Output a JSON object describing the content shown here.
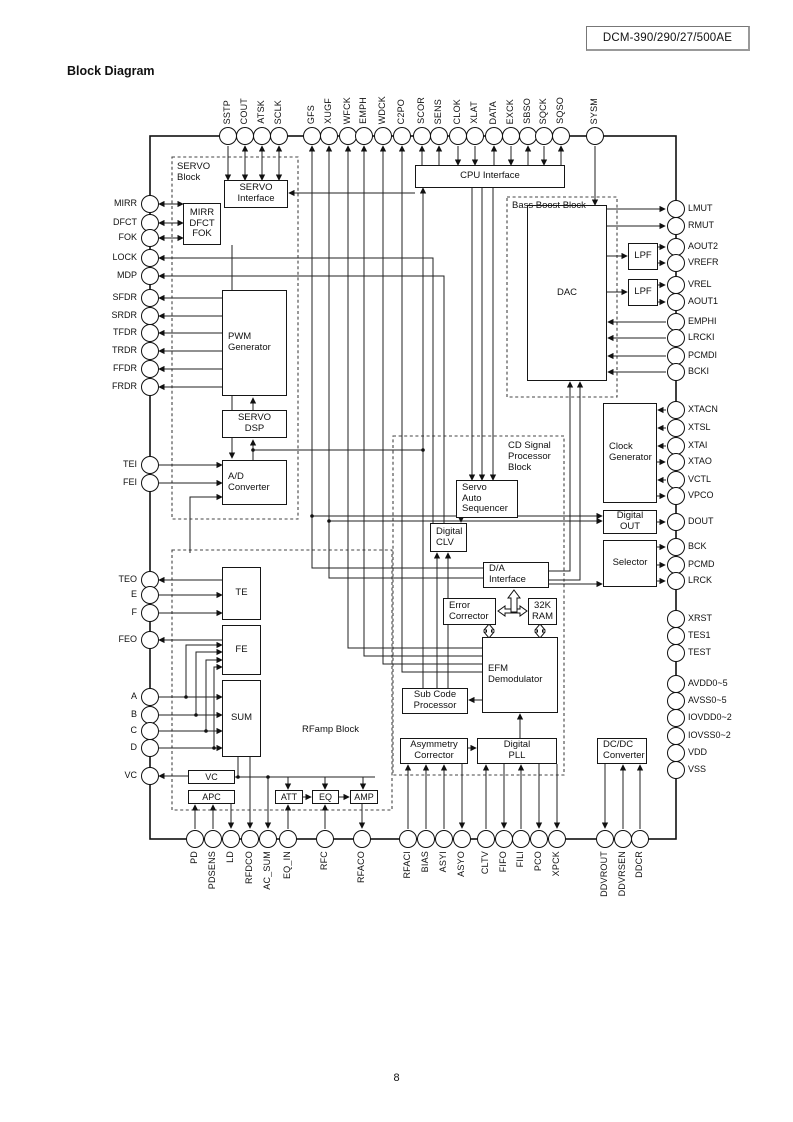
{
  "page": {
    "doc_code": "DCM-390/290/27/500AE",
    "heading": "Block Diagram",
    "page_number": "8"
  },
  "pins": {
    "top": [
      "SSTP",
      "COUT",
      "ATSK",
      "SCLK",
      "GFS",
      "XUGF",
      "WFCK",
      "EMPH",
      "WDCK",
      "C2PO",
      "SCOR",
      "SENS",
      "CLOK",
      "XLAT",
      "DATA",
      "EXCK",
      "SBSO",
      "SQCK",
      "SQSO",
      "SYSM"
    ],
    "left": [
      "MIRR",
      "DFCT",
      "FOK",
      "LOCK",
      "MDP",
      "SFDR",
      "SRDR",
      "TFDR",
      "TRDR",
      "FFDR",
      "FRDR",
      "TEI",
      "FEI",
      "TEO",
      "E",
      "F",
      "FEO",
      "A",
      "B",
      "C",
      "D",
      "VC"
    ],
    "right": [
      "LMUT",
      "RMUT",
      "AOUT2",
      "VREFR",
      "VREL",
      "AOUT1",
      "EMPHI",
      "LRCKI",
      "PCMDI",
      "BCKI",
      "XTACN",
      "XTSL",
      "XTAI",
      "XTAO",
      "VCTL",
      "VPCO",
      "DOUT",
      "BCK",
      "PCMD",
      "LRCK",
      "XRST",
      "TES1",
      "TEST",
      "AVDD0~5",
      "AVSS0~5",
      "IOVDD0~2",
      "IOVSS0~2",
      "VDD",
      "VSS"
    ],
    "bottom": [
      "PD",
      "PDSENS",
      "LD",
      "RFDCO",
      "AC_SUM",
      "EQ_IN",
      "RFC",
      "RFACO",
      "RFACI",
      "BIAS",
      "ASYI",
      "ASYO",
      "CLTV",
      "FIFO",
      "FILI",
      "PCO",
      "XPCK",
      "DDVROUT",
      "DDVRSEN",
      "DDCR"
    ]
  },
  "blocks": {
    "cpu_interface": "CPU Interface",
    "servo_interface": "SERVO\nInterface",
    "mirr_dfct_fok": "MIRR\nDFCT\nFOK",
    "pwm_generator": "PWM\nGenerator",
    "servo_dsp": "SERVO\nDSP",
    "ad_converter": "A/D\nConverter",
    "dac": "DAC",
    "lpf1": "LPF",
    "lpf2": "LPF",
    "clock_generator": "Clock\nGenerator",
    "digital_out": "Digital\nOUT",
    "selector": "Selector",
    "servo_auto_sequencer": "Servo\nAuto\nSequencer",
    "digital_clv": "Digital\nCLV",
    "da_interface": "D/A\nInterface",
    "error_corrector": "Error\nCorrector",
    "ram_32k": "32K\nRAM",
    "efm_demodulator": "EFM\nDemodulator",
    "sub_code_processor": "Sub Code\nProcessor",
    "asymmetry_corrector": "Asymmetry\nCorrector",
    "digital_pll": "Digital\nPLL",
    "dcdc_converter": "DC/DC\nConverter",
    "te": "TE",
    "fe": "FE",
    "sum": "SUM",
    "vc": "VC",
    "apc": "APC",
    "att": "ATT",
    "eq": "EQ",
    "amp": "AMP"
  },
  "dashed_blocks": {
    "servo": "SERVO\nBlock",
    "bass_boost": "Bass Boost Block",
    "cd_dsp": "CD Signal\nProcessor\nBlock",
    "rfamp": "RFamp Block"
  }
}
